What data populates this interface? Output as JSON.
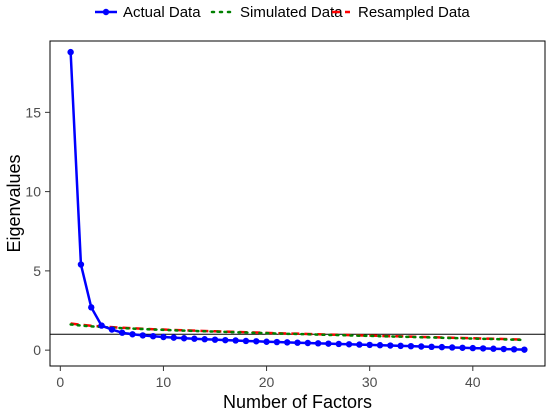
{
  "chart_data": {
    "type": "line",
    "xlabel": "Number of Factors",
    "ylabel": "Eigenvalues",
    "xlim": [
      -1,
      47
    ],
    "ylim": [
      -1.0,
      19.5
    ],
    "xticks": [
      0,
      10,
      20,
      30,
      40
    ],
    "yticks": [
      0,
      5,
      10,
      15
    ],
    "grid": false,
    "legend_position": "top",
    "reference_line": {
      "y": 1
    },
    "x": [
      1,
      2,
      3,
      4,
      5,
      6,
      7,
      8,
      9,
      10,
      11,
      12,
      13,
      14,
      15,
      16,
      17,
      18,
      19,
      20,
      21,
      22,
      23,
      24,
      25,
      26,
      27,
      28,
      29,
      30,
      31,
      32,
      33,
      34,
      35,
      36,
      37,
      38,
      39,
      40,
      41,
      42,
      43,
      44,
      45
    ],
    "series": [
      {
        "name": "Actual Data",
        "style": "solid-points",
        "color": "#0000ff",
        "values": [
          18.8,
          5.4,
          2.7,
          1.55,
          1.3,
          1.1,
          1.0,
          0.93,
          0.88,
          0.83,
          0.79,
          0.75,
          0.72,
          0.69,
          0.66,
          0.63,
          0.61,
          0.58,
          0.56,
          0.53,
          0.51,
          0.49,
          0.47,
          0.45,
          0.43,
          0.41,
          0.39,
          0.37,
          0.35,
          0.33,
          0.31,
          0.29,
          0.27,
          0.25,
          0.23,
          0.21,
          0.19,
          0.17,
          0.15,
          0.13,
          0.11,
          0.09,
          0.07,
          0.05,
          0.03
        ]
      },
      {
        "name": "Simulated Data",
        "style": "dotted",
        "color": "#008000",
        "values": [
          1.62,
          1.55,
          1.5,
          1.46,
          1.42,
          1.39,
          1.36,
          1.33,
          1.3,
          1.28,
          1.25,
          1.23,
          1.21,
          1.19,
          1.17,
          1.15,
          1.13,
          1.11,
          1.09,
          1.07,
          1.05,
          1.03,
          1.02,
          1.0,
          0.98,
          0.96,
          0.95,
          0.93,
          0.91,
          0.9,
          0.88,
          0.86,
          0.85,
          0.83,
          0.81,
          0.8,
          0.78,
          0.76,
          0.75,
          0.73,
          0.71,
          0.7,
          0.68,
          0.66,
          0.64
        ]
      },
      {
        "name": "Resampled Data",
        "style": "dashed",
        "color": "#ff0000",
        "values": [
          1.68,
          1.6,
          1.54,
          1.49,
          1.45,
          1.41,
          1.38,
          1.35,
          1.32,
          1.3,
          1.27,
          1.25,
          1.23,
          1.21,
          1.19,
          1.17,
          1.15,
          1.13,
          1.11,
          1.09,
          1.07,
          1.05,
          1.04,
          1.02,
          1.0,
          0.98,
          0.97,
          0.95,
          0.93,
          0.92,
          0.9,
          0.88,
          0.87,
          0.85,
          0.83,
          0.82,
          0.8,
          0.78,
          0.77,
          0.75,
          0.73,
          0.72,
          0.7,
          0.68,
          0.66
        ]
      }
    ]
  }
}
